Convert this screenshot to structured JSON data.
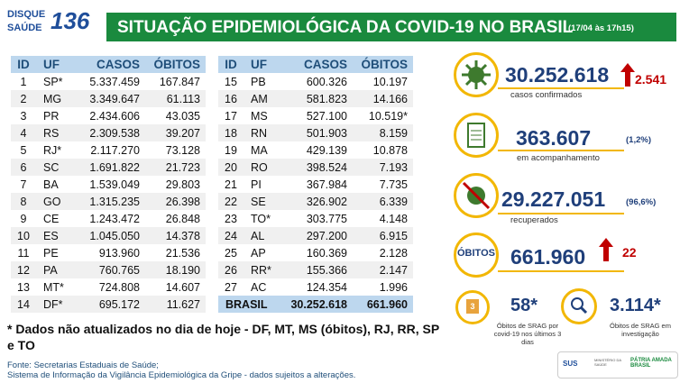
{
  "header": {
    "logo_line1": "DISQUE",
    "logo_line2": "SAÚDE",
    "logo_number": "136",
    "title": "SITUAÇÃO EPIDEMIOLÓGICA DA COVID-19 NO BRASIL",
    "timestamp": "(17/04 às 17h15)"
  },
  "tables": [
    {
      "columns": [
        "ID",
        "UF",
        "CASOS",
        "ÓBITOS"
      ],
      "rows": [
        [
          "1",
          "SP*",
          "5.337.459",
          "167.847"
        ],
        [
          "2",
          "MG",
          "3.349.647",
          "61.113"
        ],
        [
          "3",
          "PR",
          "2.434.606",
          "43.035"
        ],
        [
          "4",
          "RS",
          "2.309.538",
          "39.207"
        ],
        [
          "5",
          "RJ*",
          "2.117.270",
          "73.128"
        ],
        [
          "6",
          "SC",
          "1.691.822",
          "21.723"
        ],
        [
          "7",
          "BA",
          "1.539.049",
          "29.803"
        ],
        [
          "8",
          "GO",
          "1.315.235",
          "26.398"
        ],
        [
          "9",
          "CE",
          "1.243.472",
          "26.848"
        ],
        [
          "10",
          "ES",
          "1.045.050",
          "14.378"
        ],
        [
          "11",
          "PE",
          "913.960",
          "21.536"
        ],
        [
          "12",
          "PA",
          "760.765",
          "18.190"
        ],
        [
          "13",
          "MT*",
          "724.808",
          "14.607"
        ],
        [
          "14",
          "DF*",
          "695.172",
          "11.627"
        ]
      ]
    },
    {
      "columns": [
        "ID",
        "UF",
        "CASOS",
        "ÓBITOS"
      ],
      "rows": [
        [
          "15",
          "PB",
          "600.326",
          "10.197"
        ],
        [
          "16",
          "AM",
          "581.823",
          "14.166"
        ],
        [
          "17",
          "MS",
          "527.100",
          "10.519*"
        ],
        [
          "18",
          "RN",
          "501.903",
          "8.159"
        ],
        [
          "19",
          "MA",
          "429.139",
          "10.878"
        ],
        [
          "20",
          "RO",
          "398.524",
          "7.193"
        ],
        [
          "21",
          "PI",
          "367.984",
          "7.735"
        ],
        [
          "22",
          "SE",
          "326.902",
          "6.339"
        ],
        [
          "23",
          "TO*",
          "303.775",
          "4.148"
        ],
        [
          "24",
          "AL",
          "297.200",
          "6.915"
        ],
        [
          "25",
          "AP",
          "160.369",
          "2.128"
        ],
        [
          "26",
          "RR*",
          "155.366",
          "2.147"
        ],
        [
          "27",
          "AC",
          "124.354",
          "1.996"
        ]
      ],
      "total": [
        "BRASIL",
        "30.252.618",
        "661.960"
      ]
    }
  ],
  "stats": {
    "confirmed": {
      "value": "30.252.618",
      "change": "2.541",
      "label": "casos confirmados"
    },
    "monitoring": {
      "value": "363.607",
      "percent": "(1,2%)",
      "label": "em acompanhamento"
    },
    "recovered": {
      "value": "29.227.051",
      "percent": "(96,6%)",
      "label": "recuperados"
    },
    "deaths": {
      "label": "ÓBITOS",
      "value": "661.960",
      "change": "22"
    },
    "srag_recent": {
      "calendar_day": "3",
      "value": "58*",
      "label": "Óbitos de SRAG por covid-19 nos últimos 3 dias"
    },
    "srag_investigation": {
      "value": "3.114*",
      "label": "Óbitos de SRAG em investigação"
    }
  },
  "footnote": "* Dados não atualizados no dia de hoje - DF, MT, MS (óbitos), RJ, RR, SP e TO",
  "sources": [
    "Fonte: Secretarias Estaduais de Saúde;",
    "Sistema de Informação da Vigilância Epidemiológica da Gripe - dados sujeitos a alterações."
  ],
  "logos": [
    "SUS",
    "MINISTÉRIO DA SAÚDE",
    "PÁTRIA AMADA BRASIL"
  ]
}
